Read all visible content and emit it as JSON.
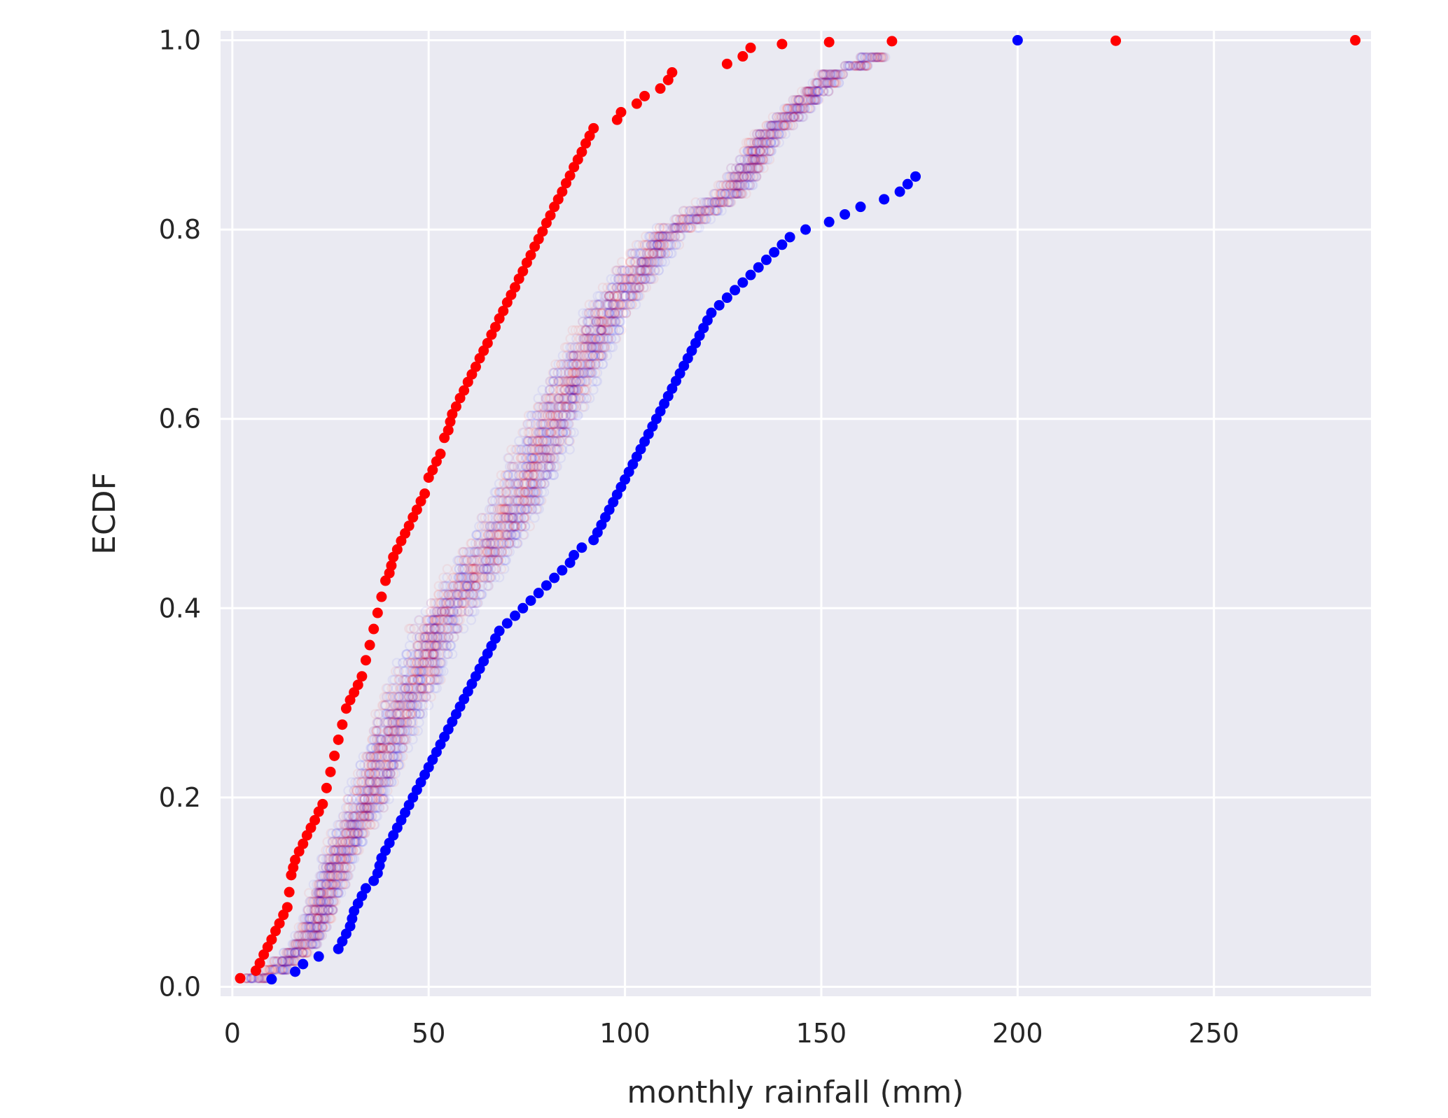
{
  "chart_data": {
    "type": "scatter",
    "title": "",
    "xlabel": "monthly rainfall (mm)",
    "ylabel": "ECDF",
    "xlim": [
      -3,
      290
    ],
    "ylim": [
      -0.01,
      1.01
    ],
    "xticks": [
      0,
      50,
      100,
      150,
      200,
      250
    ],
    "yticks": [
      0.0,
      0.2,
      0.4,
      0.6,
      0.8,
      1.0
    ],
    "xtick_labels": [
      "0",
      "50",
      "100",
      "150",
      "200",
      "250"
    ],
    "ytick_labels": [
      "0.0",
      "0.2",
      "0.4",
      "0.6",
      "0.8",
      "1.0"
    ],
    "grid": true,
    "style": {
      "background": "#eaeaf2",
      "grid_color": "#ffffff",
      "red_color": "#ff0000",
      "blue_color": "#0000ff",
      "perm_red_color": "#ff0000",
      "perm_blue_color": "#0000ff",
      "perm_alpha": 0.02
    },
    "permutation_replicates": 50,
    "series": [
      {
        "color": "#ff0000",
        "marker": "filled",
        "x": [
          2,
          6,
          7,
          8,
          9,
          10,
          11,
          12,
          13,
          14,
          14.5,
          15,
          15.5,
          16,
          17,
          18,
          19,
          20,
          21,
          22,
          23,
          24,
          25,
          26,
          27,
          28,
          29,
          30,
          31,
          32,
          33,
          34,
          35,
          36,
          37,
          38,
          39,
          40,
          40.5,
          41,
          42,
          43,
          44,
          45,
          46,
          47,
          48,
          49,
          50,
          51,
          52,
          53,
          54,
          55,
          55.5,
          56,
          57,
          58,
          59,
          60,
          61,
          62,
          63,
          64,
          65,
          66,
          67,
          68,
          69,
          70,
          71,
          72,
          73,
          74,
          75,
          76,
          77,
          78,
          79,
          80,
          81,
          82,
          83,
          84,
          85,
          86,
          87,
          88,
          89,
          90,
          91,
          92,
          98,
          99,
          103,
          105,
          109,
          111,
          112,
          126,
          130,
          132,
          140,
          152,
          168,
          225,
          286
        ],
        "y": [
          0.009,
          0.017,
          0.025,
          0.034,
          0.042,
          0.05,
          0.059,
          0.067,
          0.076,
          0.084,
          0.1,
          0.118,
          0.126,
          0.134,
          0.143,
          0.151,
          0.16,
          0.168,
          0.176,
          0.185,
          0.193,
          0.21,
          0.227,
          0.244,
          0.261,
          0.277,
          0.294,
          0.303,
          0.311,
          0.319,
          0.328,
          0.345,
          0.361,
          0.378,
          0.395,
          0.412,
          0.429,
          0.437,
          0.445,
          0.454,
          0.462,
          0.471,
          0.479,
          0.487,
          0.496,
          0.504,
          0.513,
          0.521,
          0.538,
          0.546,
          0.555,
          0.563,
          0.58,
          0.588,
          0.597,
          0.605,
          0.613,
          0.622,
          0.63,
          0.639,
          0.647,
          0.655,
          0.664,
          0.672,
          0.68,
          0.689,
          0.697,
          0.706,
          0.714,
          0.723,
          0.731,
          0.739,
          0.748,
          0.756,
          0.765,
          0.773,
          0.782,
          0.79,
          0.798,
          0.807,
          0.815,
          0.824,
          0.832,
          0.84,
          0.849,
          0.857,
          0.866,
          0.874,
          0.882,
          0.891,
          0.899,
          0.907,
          0.916,
          0.924,
          0.933,
          0.941,
          0.949,
          0.958,
          0.966,
          0.975,
          0.983,
          0.992,
          0.996,
          0.998,
          0.999,
          0.9995,
          1.0
        ]
      },
      {
        "color": "#0000ff",
        "marker": "filled",
        "x": [
          10,
          16,
          18,
          22,
          27,
          28,
          29,
          30,
          30.5,
          31,
          32,
          33,
          34,
          36,
          37,
          37.5,
          38,
          39,
          40,
          41,
          42,
          43,
          44,
          45,
          46,
          47,
          48,
          49,
          50,
          51,
          52,
          53,
          54,
          55,
          56,
          57,
          58,
          59,
          60,
          61,
          62,
          63,
          64,
          65,
          66,
          67,
          68,
          70,
          72,
          74,
          76,
          78,
          80,
          82,
          84,
          86,
          87,
          89,
          92,
          93,
          94,
          95,
          96,
          97,
          98,
          99,
          100,
          101,
          102,
          103,
          104,
          105,
          106,
          107,
          108,
          109,
          110,
          111,
          112,
          113,
          114,
          115,
          116,
          117,
          118,
          119,
          120,
          121,
          122,
          124,
          126,
          128,
          130,
          132,
          134,
          136,
          138,
          140,
          142,
          146,
          152,
          156,
          160,
          166,
          170,
          172,
          174,
          200
        ],
        "y": [
          0.008,
          0.016,
          0.024,
          0.032,
          0.04,
          0.048,
          0.056,
          0.064,
          0.072,
          0.08,
          0.088,
          0.096,
          0.104,
          0.112,
          0.12,
          0.128,
          0.136,
          0.144,
          0.152,
          0.16,
          0.168,
          0.176,
          0.184,
          0.192,
          0.2,
          0.208,
          0.216,
          0.224,
          0.232,
          0.24,
          0.248,
          0.256,
          0.264,
          0.272,
          0.28,
          0.288,
          0.296,
          0.304,
          0.312,
          0.32,
          0.328,
          0.336,
          0.344,
          0.352,
          0.36,
          0.368,
          0.376,
          0.384,
          0.392,
          0.4,
          0.408,
          0.416,
          0.424,
          0.432,
          0.44,
          0.448,
          0.456,
          0.464,
          0.472,
          0.48,
          0.488,
          0.496,
          0.504,
          0.512,
          0.52,
          0.528,
          0.536,
          0.544,
          0.552,
          0.56,
          0.568,
          0.576,
          0.584,
          0.592,
          0.6,
          0.608,
          0.616,
          0.624,
          0.632,
          0.64,
          0.648,
          0.656,
          0.664,
          0.672,
          0.68,
          0.688,
          0.696,
          0.704,
          0.712,
          0.72,
          0.728,
          0.736,
          0.744,
          0.752,
          0.76,
          0.768,
          0.776,
          0.784,
          0.792,
          0.8,
          0.808,
          0.816,
          0.824,
          0.832,
          0.84,
          0.848,
          0.856,
          1.0
        ]
      }
    ]
  }
}
